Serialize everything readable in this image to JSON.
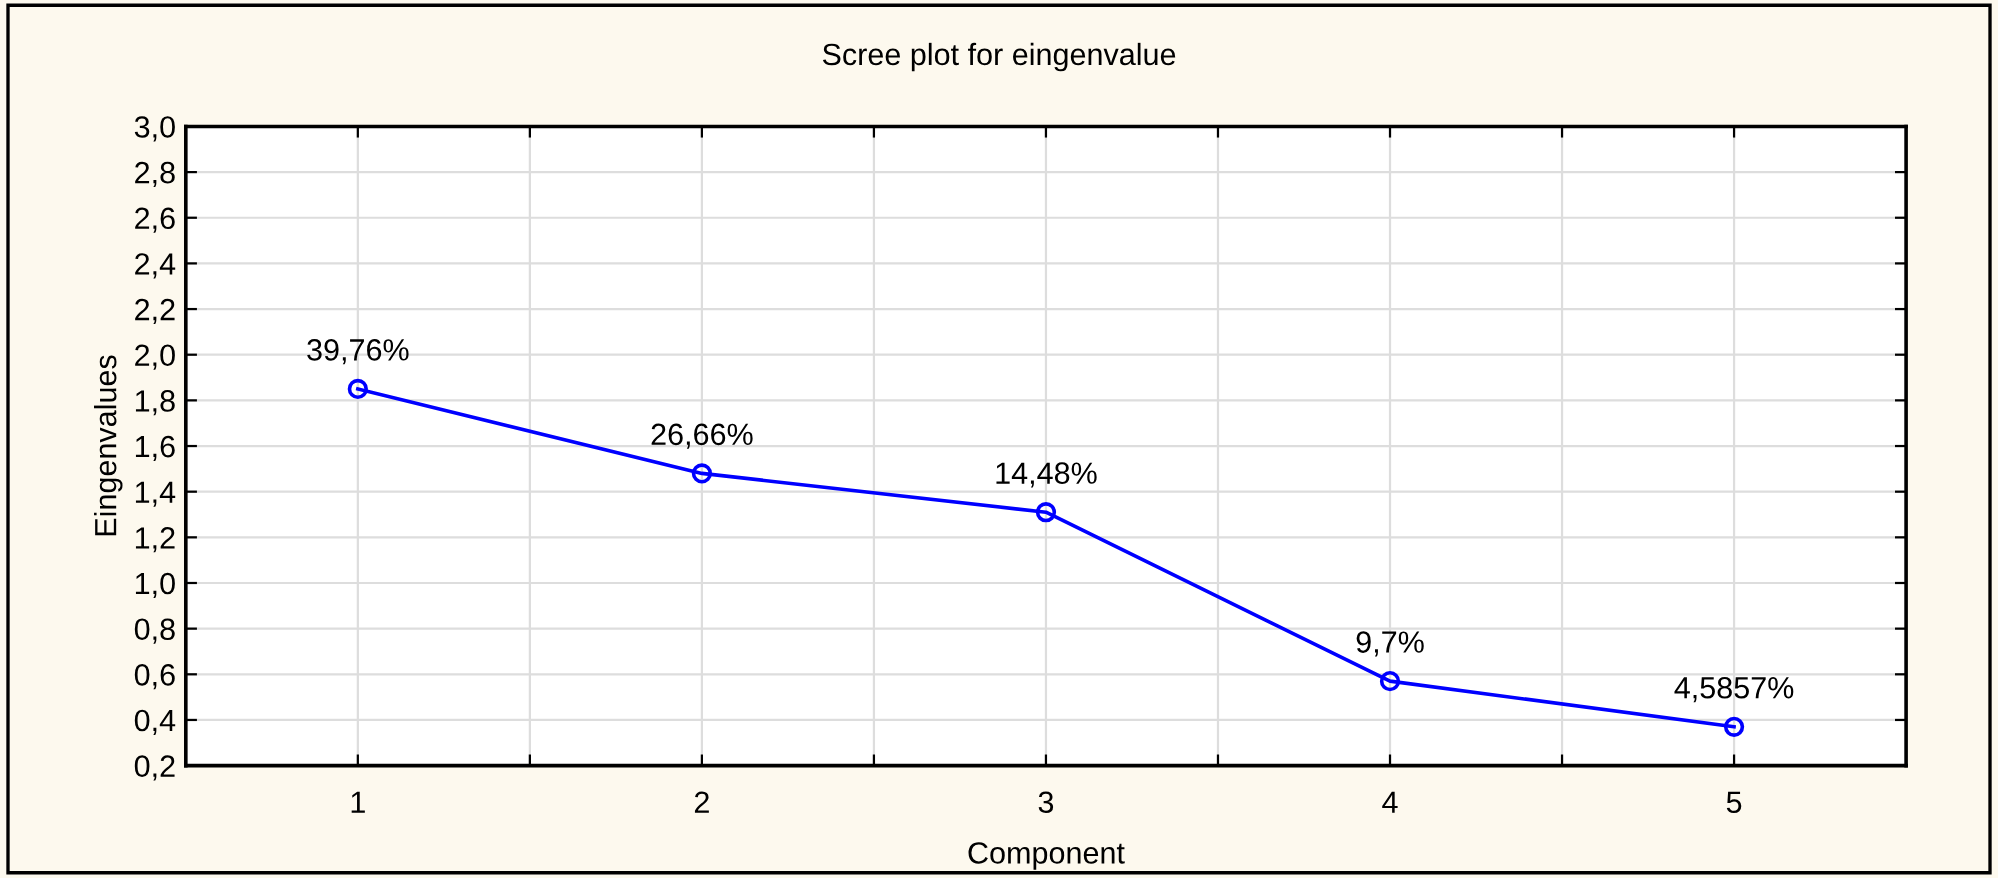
{
  "chart_data": {
    "type": "line",
    "title": "Scree plot for eingenvalue",
    "xlabel": "Component",
    "ylabel": "Eingenvalues",
    "x": [
      1,
      2,
      3,
      4,
      5
    ],
    "series": [
      {
        "color": "#0000ff",
        "values": [
          1.85,
          1.48,
          1.31,
          0.57,
          0.37
        ]
      }
    ],
    "annotations": [
      {
        "text": "39,76%",
        "x": 1,
        "y": 1.85
      },
      {
        "text": "26,66%",
        "x": 2,
        "y": 1.48
      },
      {
        "text": "14,48%",
        "x": 3,
        "y": 1.31
      },
      {
        "text": "9,7%",
        "x": 4,
        "y": 0.57
      },
      {
        "text": "4,5857%",
        "x": 5,
        "y": 0.37
      }
    ],
    "xlim": [
      0.5,
      5.5
    ],
    "xticks": [
      1,
      {
        "value": 1.5,
        "label": null
      },
      2,
      {
        "value": 2.5,
        "label": null
      },
      3,
      {
        "value": 3.5,
        "label": null
      },
      4,
      {
        "value": 4.5,
        "label": null
      },
      5
    ],
    "ylim": [
      0.2,
      3.0
    ],
    "yticks": [
      {
        "value": 0.2,
        "label": "0,2"
      },
      {
        "value": 0.4,
        "label": "0,4"
      },
      {
        "value": 0.6,
        "label": "0,6"
      },
      {
        "value": 0.8,
        "label": "0,8"
      },
      {
        "value": 1.0,
        "label": "1,0"
      },
      {
        "value": 1.2,
        "label": "1,2"
      },
      {
        "value": 1.4,
        "label": "1,4"
      },
      {
        "value": 1.6,
        "label": "1,6"
      },
      {
        "value": 1.8,
        "label": "1,8"
      },
      {
        "value": 2.0,
        "label": "2,0"
      },
      {
        "value": 2.2,
        "label": "2,2"
      },
      {
        "value": 2.4,
        "label": "2,4"
      },
      {
        "value": 2.6,
        "label": "2,6"
      },
      {
        "value": 2.8,
        "label": "2,8"
      },
      {
        "value": 3.0,
        "label": "3,0"
      }
    ],
    "grid": true,
    "marker": "circle",
    "line_style": "solid"
  }
}
